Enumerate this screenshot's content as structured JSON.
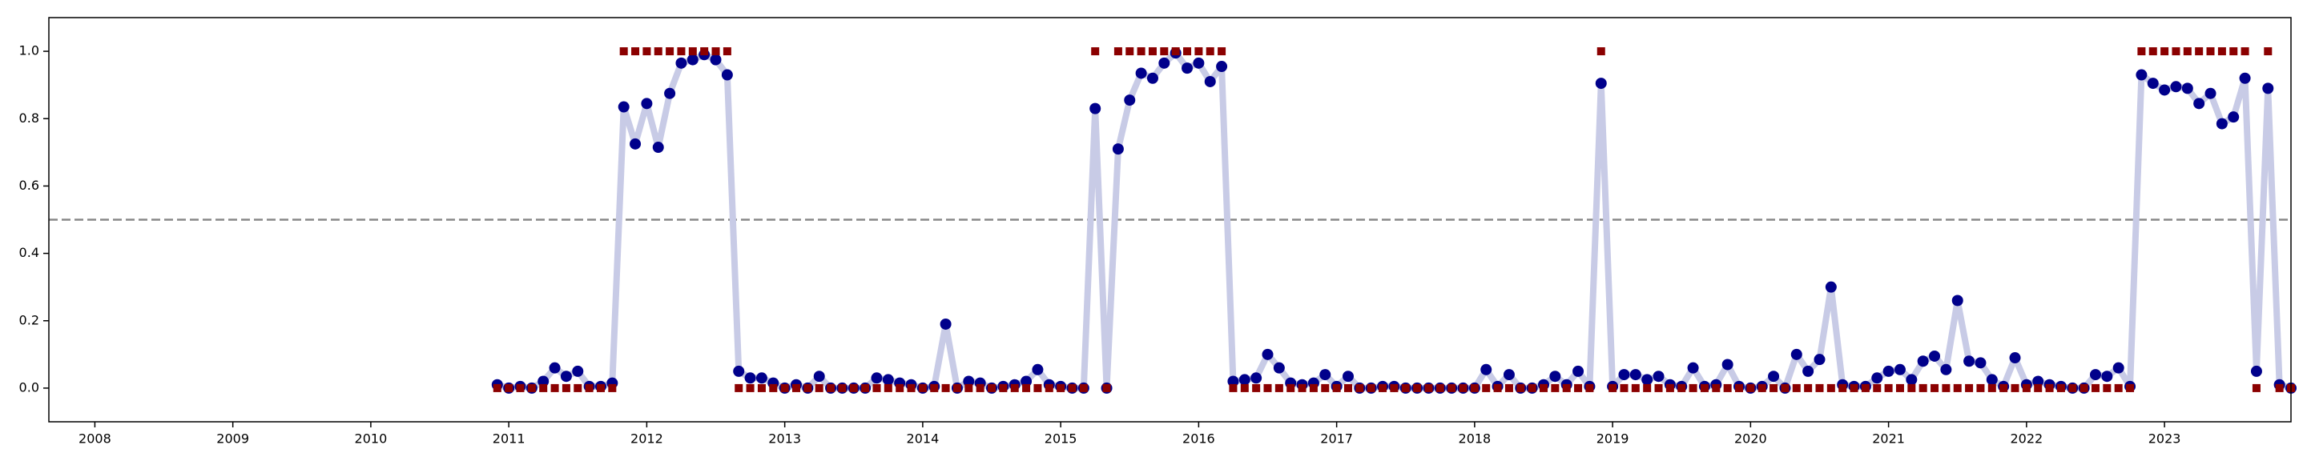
{
  "chart_data": {
    "type": "line",
    "x": [
      "2010-12",
      "2011-01",
      "2011-02",
      "2011-03",
      "2011-04",
      "2011-05",
      "2011-06",
      "2011-07",
      "2011-08",
      "2011-09",
      "2011-10",
      "2011-11",
      "2011-12",
      "2012-01",
      "2012-02",
      "2012-03",
      "2012-04",
      "2012-05",
      "2012-06",
      "2012-07",
      "2012-08",
      "2012-09",
      "2012-10",
      "2012-11",
      "2012-12",
      "2013-01",
      "2013-02",
      "2013-03",
      "2013-04",
      "2013-05",
      "2013-06",
      "2013-07",
      "2013-08",
      "2013-09",
      "2013-10",
      "2013-11",
      "2013-12",
      "2014-01",
      "2014-02",
      "2014-03",
      "2014-04",
      "2014-05",
      "2014-06",
      "2014-07",
      "2014-08",
      "2014-09",
      "2014-10",
      "2014-11",
      "2014-12",
      "2015-01",
      "2015-02",
      "2015-03",
      "2015-04",
      "2015-05",
      "2015-06",
      "2015-07",
      "2015-08",
      "2015-09",
      "2015-10",
      "2015-11",
      "2015-12",
      "2016-01",
      "2016-02",
      "2016-03",
      "2016-04",
      "2016-05",
      "2016-06",
      "2016-07",
      "2016-08",
      "2016-09",
      "2016-10",
      "2016-11",
      "2016-12",
      "2017-01",
      "2017-02",
      "2017-03",
      "2017-04",
      "2017-05",
      "2017-06",
      "2017-07",
      "2017-08",
      "2017-09",
      "2017-10",
      "2017-11",
      "2017-12",
      "2018-01",
      "2018-02",
      "2018-03",
      "2018-04",
      "2018-05",
      "2018-06",
      "2018-07",
      "2018-08",
      "2018-09",
      "2018-10",
      "2018-11",
      "2018-12",
      "2019-01",
      "2019-02",
      "2019-03",
      "2019-04",
      "2019-05",
      "2019-06",
      "2019-07",
      "2019-08",
      "2019-09",
      "2019-10",
      "2019-11",
      "2019-12",
      "2020-01",
      "2020-02",
      "2020-03",
      "2020-04",
      "2020-05",
      "2020-06",
      "2020-07",
      "2020-08",
      "2020-09",
      "2020-10",
      "2020-11",
      "2020-12",
      "2021-01",
      "2021-02",
      "2021-03",
      "2021-04",
      "2021-05",
      "2021-06",
      "2021-07",
      "2021-08",
      "2021-09",
      "2021-10",
      "2021-11",
      "2021-12",
      "2022-01",
      "2022-02",
      "2022-03",
      "2022-04",
      "2022-05",
      "2022-06",
      "2022-07",
      "2022-08",
      "2022-09",
      "2022-10",
      "2022-11",
      "2022-12",
      "2023-01",
      "2023-02",
      "2023-03",
      "2023-04",
      "2023-05",
      "2023-06",
      "2023-07",
      "2023-08",
      "2023-09",
      "2023-10",
      "2023-11",
      "2023-12"
    ],
    "series": [
      {
        "color": "#00008b",
        "line_color": "#c8cbe6",
        "marker": "circle",
        "values": [
          0.01,
          0.0,
          0.005,
          0.0,
          0.02,
          0.06,
          0.035,
          0.05,
          0.005,
          0.005,
          0.015,
          0.835,
          0.725,
          0.845,
          0.715,
          0.875,
          0.965,
          0.975,
          0.99,
          0.975,
          0.93,
          0.05,
          0.03,
          0.03,
          0.015,
          0.0,
          0.01,
          0.0,
          0.035,
          0.0,
          0.0,
          0.0,
          0.0,
          0.03,
          0.025,
          0.015,
          0.01,
          0.0,
          0.005,
          0.19,
          0.0,
          0.02,
          0.015,
          0.0,
          0.005,
          0.01,
          0.02,
          0.055,
          0.01,
          0.005,
          0.0,
          0.0,
          0.83,
          0.0,
          0.71,
          0.855,
          0.935,
          0.92,
          0.965,
          0.995,
          0.95,
          0.965,
          0.91,
          0.955,
          0.02,
          0.025,
          0.03,
          0.1,
          0.06,
          0.015,
          0.01,
          0.015,
          0.04,
          0.005,
          0.035,
          0.0,
          0.0,
          0.005,
          0.005,
          0.0,
          0.0,
          0.0,
          0.0,
          0.0,
          0.0,
          0.0,
          0.055,
          0.005,
          0.04,
          0.0,
          0.0,
          0.01,
          0.035,
          0.01,
          0.05,
          0.005,
          0.905,
          0.005,
          0.04,
          0.04,
          0.025,
          0.035,
          0.01,
          0.005,
          0.06,
          0.005,
          0.01,
          0.07,
          0.005,
          0.0,
          0.005,
          0.035,
          0.0,
          0.1,
          0.05,
          0.085,
          0.3,
          0.01,
          0.005,
          0.005,
          0.03,
          0.05,
          0.055,
          0.025,
          0.08,
          0.095,
          0.055,
          0.26,
          0.08,
          0.075,
          0.025,
          0.005,
          0.09,
          0.01,
          0.02,
          0.01,
          0.005,
          0.0,
          0.0,
          0.04,
          0.035,
          0.06,
          0.005,
          0.93,
          0.905,
          0.885,
          0.895,
          0.89,
          0.845,
          0.875,
          0.785,
          0.805,
          0.92,
          0.05,
          0.89,
          0.01,
          0.0
        ]
      },
      {
        "color": "#8b0000",
        "marker": "square",
        "values": [
          0,
          0,
          0,
          0,
          0,
          0,
          0,
          0,
          0,
          0,
          0,
          1,
          1,
          1,
          1,
          1,
          1,
          1,
          1,
          1,
          1,
          0,
          0,
          0,
          0,
          0,
          0,
          0,
          0,
          0,
          0,
          0,
          0,
          0,
          0,
          0,
          0,
          0,
          0,
          0,
          0,
          0,
          0,
          0,
          0,
          0,
          0,
          0,
          0,
          0,
          0,
          0,
          1,
          0,
          1,
          1,
          1,
          1,
          1,
          1,
          1,
          1,
          1,
          1,
          0,
          0,
          0,
          0,
          0,
          0,
          0,
          0,
          0,
          0,
          0,
          0,
          0,
          0,
          0,
          0,
          0,
          0,
          0,
          0,
          0,
          0,
          0,
          0,
          0,
          0,
          0,
          0,
          0,
          0,
          0,
          0,
          1,
          0,
          0,
          0,
          0,
          0,
          0,
          0,
          0,
          0,
          0,
          0,
          0,
          0,
          0,
          0,
          0,
          0,
          0,
          0,
          0,
          0,
          0,
          0,
          0,
          0,
          0,
          0,
          0,
          0,
          0,
          0,
          0,
          0,
          0,
          0,
          0,
          0,
          0,
          0,
          0,
          0,
          0,
          0,
          0,
          0,
          0,
          1,
          1,
          1,
          1,
          1,
          1,
          1,
          1,
          1,
          1,
          0,
          1,
          0,
          0
        ]
      }
    ],
    "hline": {
      "value": 0.5,
      "color": "#888888",
      "style": "dashed"
    },
    "xlim": [
      "2007-09",
      "2023-12"
    ],
    "xticks": [
      2008,
      2009,
      2010,
      2011,
      2012,
      2013,
      2014,
      2015,
      2016,
      2017,
      2018,
      2019,
      2020,
      2021,
      2022,
      2023
    ],
    "ylim": [
      -0.1,
      1.1
    ],
    "yticks": [
      {
        "value": 0,
        "label": "0.0"
      },
      {
        "value": 0.2,
        "label": "0.2"
      },
      {
        "value": 0.4,
        "label": "0.4"
      },
      {
        "value": 0.6,
        "label": "0.6"
      },
      {
        "value": 0.8,
        "label": "0.8"
      },
      {
        "value": 1,
        "label": "1.0"
      }
    ],
    "grid": false
  }
}
